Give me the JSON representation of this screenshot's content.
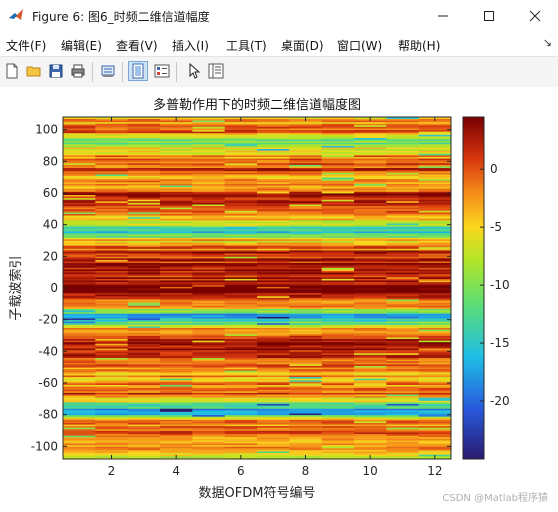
{
  "window": {
    "title": "Figure 6: 图6_时频二维信道幅度"
  },
  "menu": [
    "文件(F)",
    "编辑(E)",
    "查看(V)",
    "插入(I)",
    "工具(T)",
    "桌面(D)",
    "窗口(W)",
    "帮助(H)"
  ],
  "toolbar": [
    "new-figure",
    "open-file",
    "save",
    "print",
    "print-preview",
    "dock-figure",
    "property-inspector",
    "pointer",
    "edit-plot"
  ],
  "colors": {
    "low": "#2a1a6e",
    "mid": "#a8e630",
    "high": "#7a0000"
  },
  "chart_data": {
    "type": "heatmap",
    "title": "多普勒作用下的时频二维信道幅度图",
    "xlabel": "数据OFDM符号编号",
    "ylabel": "子载波索引",
    "x_range": [
      0.5,
      12.5
    ],
    "y_range": [
      -108,
      108
    ],
    "xticks": [
      2,
      4,
      6,
      8,
      10,
      12
    ],
    "yticks": [
      -100,
      -80,
      -60,
      -40,
      -20,
      0,
      20,
      40,
      60,
      80,
      100
    ],
    "colorbar": {
      "range": [
        -25,
        4.5
      ],
      "ticks": [
        0,
        -5,
        -10,
        -15,
        -20
      ]
    },
    "colormap": "parula-like (dark purple → blue → green → yellow → orange → dark red)",
    "x": [
      1,
      2,
      3,
      4,
      5,
      6,
      7,
      8,
      9,
      10,
      11,
      12
    ],
    "y_start": -108,
    "y_end": 108,
    "profile_note": "magnitude (dB) per subcarrier, roughly constant across OFDM symbols",
    "profile": [
      {
        "y": 105,
        "db": -3
      },
      {
        "y": 98,
        "db": -1
      },
      {
        "y": 92,
        "db": -12
      },
      {
        "y": 88,
        "db": -6
      },
      {
        "y": 82,
        "db": -2
      },
      {
        "y": 76,
        "db": 0
      },
      {
        "y": 70,
        "db": -3
      },
      {
        "y": 64,
        "db": -1
      },
      {
        "y": 58,
        "db": 2
      },
      {
        "y": 52,
        "db": 1
      },
      {
        "y": 46,
        "db": -2
      },
      {
        "y": 41,
        "db": -8
      },
      {
        "y": 36,
        "db": -16
      },
      {
        "y": 30,
        "db": -4
      },
      {
        "y": 24,
        "db": 0
      },
      {
        "y": 18,
        "db": 2
      },
      {
        "y": 12,
        "db": 1
      },
      {
        "y": 6,
        "db": 3
      },
      {
        "y": 0,
        "db": 4
      },
      {
        "y": -6,
        "db": 2
      },
      {
        "y": -12,
        "db": -4
      },
      {
        "y": -18,
        "db": -20
      },
      {
        "y": -24,
        "db": -6
      },
      {
        "y": -30,
        "db": 0
      },
      {
        "y": -36,
        "db": 3
      },
      {
        "y": -42,
        "db": 2
      },
      {
        "y": -48,
        "db": 0
      },
      {
        "y": -54,
        "db": -4
      },
      {
        "y": -60,
        "db": -2
      },
      {
        "y": -66,
        "db": 1
      },
      {
        "y": -72,
        "db": -9
      },
      {
        "y": -78,
        "db": -18
      },
      {
        "y": -84,
        "db": -2
      },
      {
        "y": -90,
        "db": 1
      },
      {
        "y": -96,
        "db": -6
      },
      {
        "y": -102,
        "db": -3
      },
      {
        "y": -107,
        "db": -8
      }
    ]
  },
  "watermark": "CSDN @Matlab程序猿"
}
